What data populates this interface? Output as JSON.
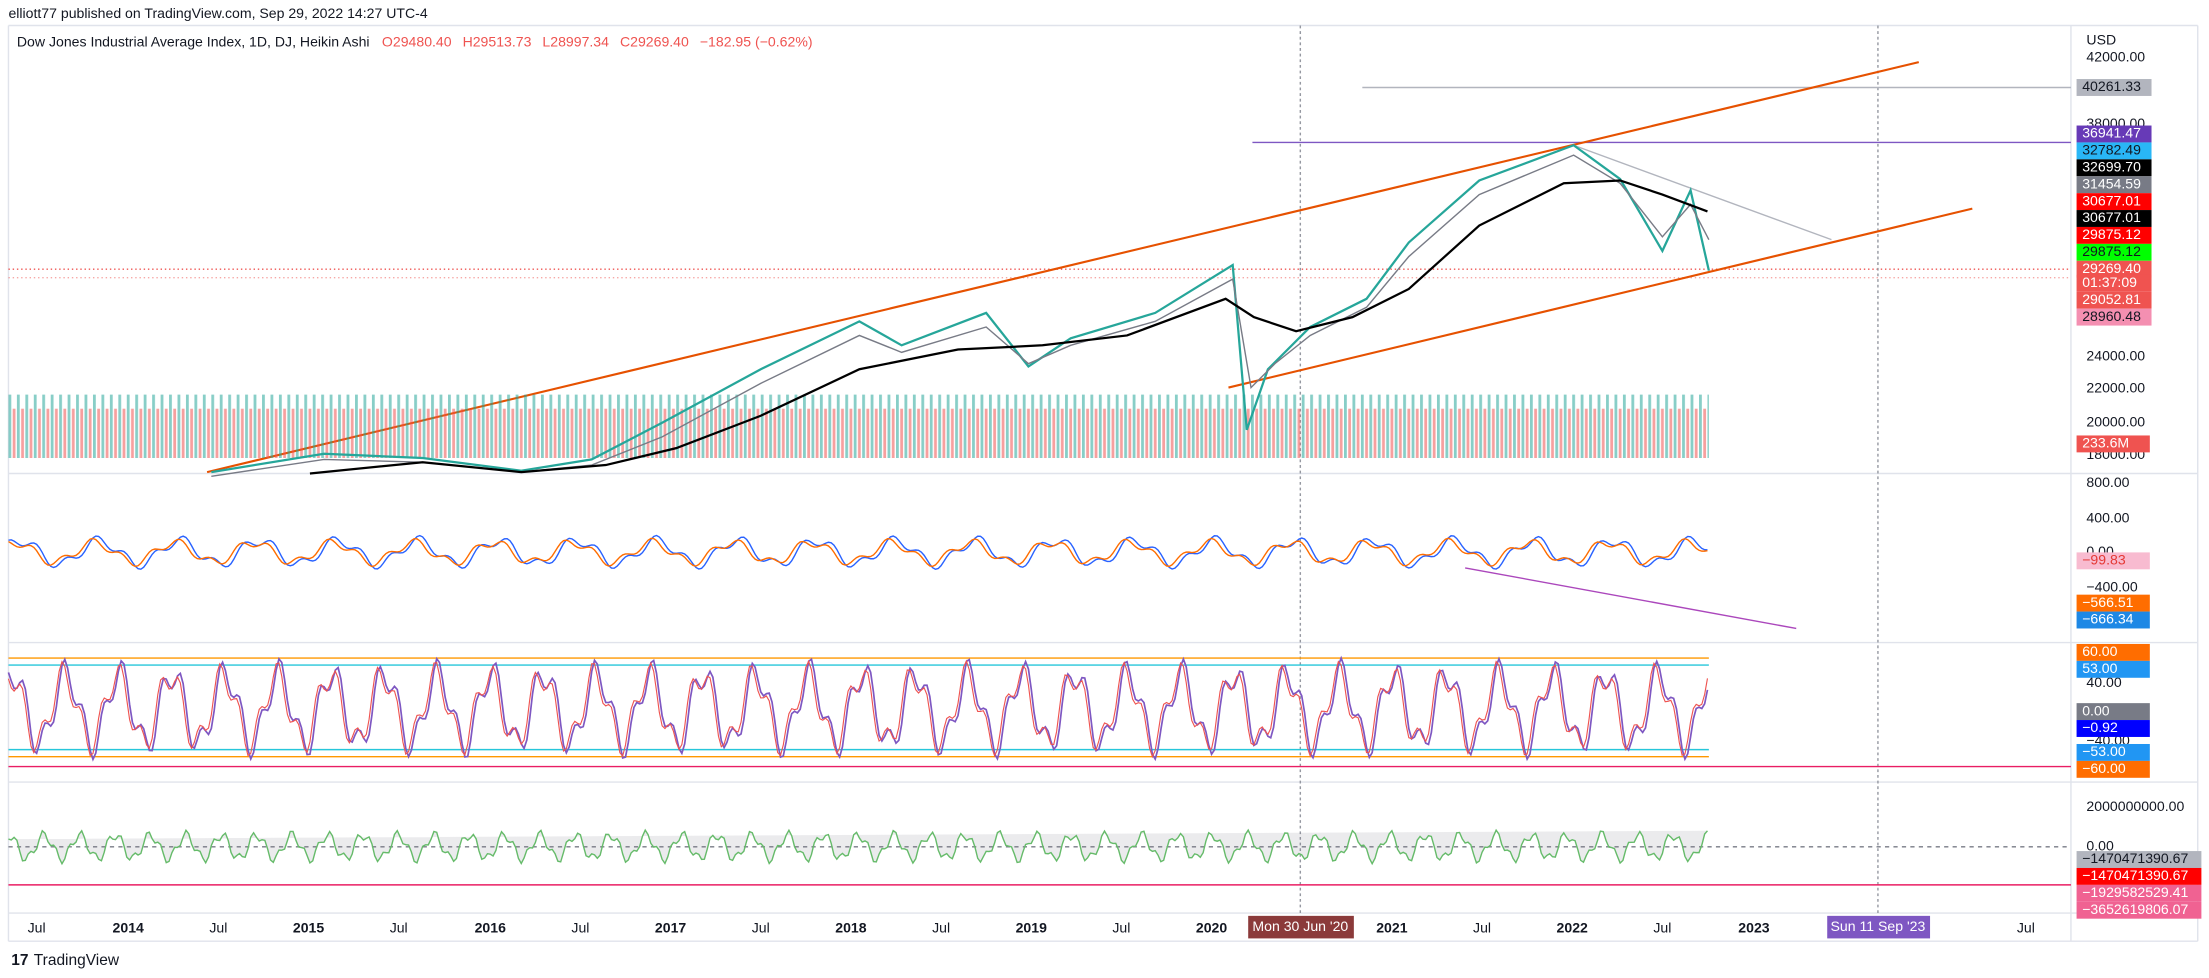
{
  "header": {
    "publisher": "elliott77 published on TradingView.com, Sep 29, 2022 14:27 UTC-4"
  },
  "legend": {
    "symbol": "Dow Jones Industrial Average Index, 1D, DJ, Heikin Ashi",
    "open": "O29480.40",
    "high": "H29513.73",
    "low": "L28997.34",
    "close": "C29269.40",
    "change": "−182.95 (−0.62%)"
  },
  "price_axis": {
    "currency": "USD",
    "labels": [
      "42000.00",
      "38000.00",
      "24000.00",
      "22000.00",
      "20000.00",
      "18000.00"
    ]
  },
  "main_badges": [
    {
      "text": "40261.33",
      "color": "#b2b5be",
      "text_color": "#131722"
    },
    {
      "text": "36941.47",
      "color": "#673ab7",
      "text_color": "#ffffff"
    },
    {
      "text": "32782.49",
      "color": "#29b6f6",
      "text_color": "#131722"
    },
    {
      "text": "32699.70",
      "color": "#000000",
      "text_color": "#ffffff"
    },
    {
      "text": "31454.59",
      "color": "#787b86",
      "text_color": "#ffffff"
    },
    {
      "text": "30677.01",
      "color": "#ff0000",
      "text_color": "#ffffff"
    },
    {
      "text": "30677.01",
      "color": "#000000",
      "text_color": "#ffffff"
    },
    {
      "text": "29875.12",
      "color": "#ff0000",
      "text_color": "#ffffff"
    },
    {
      "text": "29875.12",
      "color": "#00ff00",
      "text_color": "#131722"
    },
    {
      "text": "29269.40",
      "color": "#f05350",
      "text_color": "#ffffff"
    },
    {
      "text": "01:37:09",
      "color": "#f05350",
      "text_color": "#ffffff"
    },
    {
      "text": "29052.81",
      "color": "#ef5350",
      "text_color": "#ffffff"
    },
    {
      "text": "28960.48",
      "color": "#f48fb1",
      "text_color": "#131722"
    },
    {
      "text": "233.6M",
      "color": "#ef5350",
      "text_color": "#ffffff"
    }
  ],
  "macd_axis": {
    "labels": [
      "800.00",
      "400.00",
      "0.00",
      "−400.00"
    ]
  },
  "macd_badges": [
    {
      "text": "−99.83",
      "color": "#f8bbd0",
      "text_color": "#e53935"
    },
    {
      "text": "−566.51",
      "color": "#ff6d00",
      "text_color": "#ffffff"
    },
    {
      "text": "−666.34",
      "color": "#1e88e5",
      "text_color": "#ffffff"
    }
  ],
  "rsi_axis": {
    "labels": [
      "40.00",
      "−40.00"
    ]
  },
  "rsi_badges": [
    {
      "text": "60.00",
      "color": "#ff6d00",
      "text_color": "#ffffff"
    },
    {
      "text": "53.00",
      "color": "#2196f3",
      "text_color": "#ffffff"
    },
    {
      "text": "0.00",
      "color": "#787b86",
      "text_color": "#ffffff"
    },
    {
      "text": "−0.92",
      "color": "#0000ff",
      "text_color": "#ffffff"
    },
    {
      "text": "−53.00",
      "color": "#2196f3",
      "text_color": "#ffffff"
    },
    {
      "text": "−60.00",
      "color": "#ff6d00",
      "text_color": "#ffffff"
    }
  ],
  "flow_axis": {
    "labels": [
      "2000000000.00",
      "0.00"
    ]
  },
  "flow_badges": [
    {
      "text": "−1470471390.67",
      "color": "#b2b5be",
      "text_color": "#131722"
    },
    {
      "text": "−1470471390.67",
      "color": "#ff0000",
      "text_color": "#ffffff"
    },
    {
      "text": "−1929582529.41",
      "color": "#f06292",
      "text_color": "#ffffff"
    },
    {
      "text": "−3652619806.07",
      "color": "#f06292",
      "text_color": "#ffffff"
    }
  ],
  "time_axis": {
    "labels": [
      "Jul",
      "2014",
      "Jul",
      "2015",
      "Jul",
      "2016",
      "Jul",
      "2017",
      "Jul",
      "2018",
      "Jul",
      "2019",
      "Jul",
      "2020",
      "2021",
      "Jul",
      "2022",
      "Jul",
      "2023",
      "Jul"
    ],
    "crosshair_date": "Mon 30 Jun '20",
    "cursor_date": "Sun 11 Sep '23"
  },
  "footer": {
    "brand": "TradingView"
  }
}
